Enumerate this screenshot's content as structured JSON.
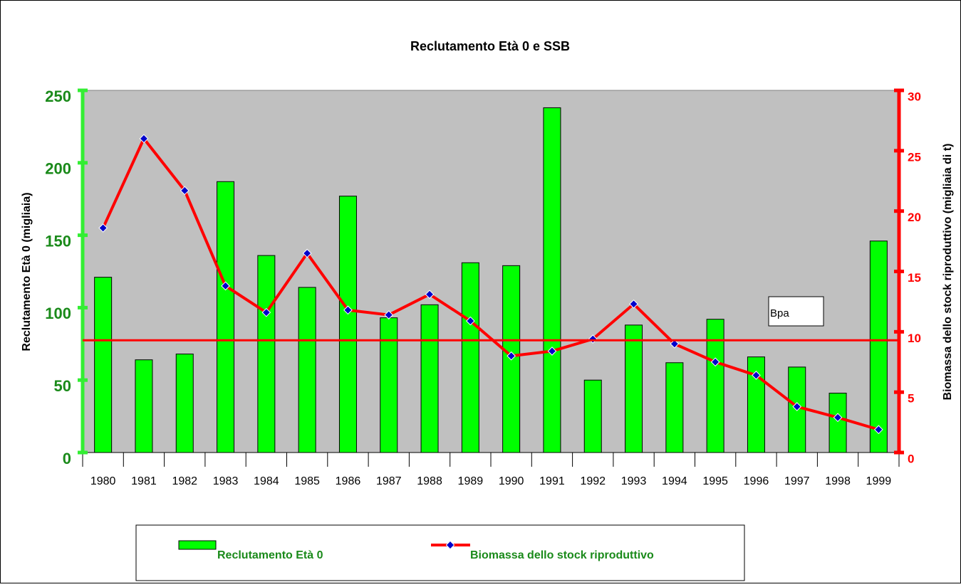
{
  "chart_data": {
    "type": "bar_line",
    "title": "Reclutamento Età 0 e SSB",
    "y_label": "Reclutamento Età 0 (migliaia)",
    "y2_label": "Biomassa dello stock riproduttivo (migliaia di t)",
    "categories": [
      "1980",
      "1981",
      "1982",
      "1983",
      "1984",
      "1985",
      "1986",
      "1987",
      "1988",
      "1989",
      "1990",
      "1991",
      "1992",
      "1993",
      "1994",
      "1995",
      "1996",
      "1997",
      "1998",
      "1999"
    ],
    "series": [
      {
        "name": "Reclutamento Età 0",
        "type": "bar",
        "color": "#00ff00",
        "axis": "y",
        "values": [
          121,
          64,
          68,
          187,
          136,
          114,
          177,
          93,
          102,
          131,
          129,
          238,
          50,
          88,
          62,
          92,
          66,
          59,
          41,
          146
        ]
      },
      {
        "name": "Biomassa dello stock riproduttivo",
        "type": "line",
        "color": "#ff0000",
        "marker_color": "#0000cc",
        "axis": "y2",
        "values": [
          18.6,
          26.0,
          21.7,
          13.8,
          11.6,
          16.5,
          11.8,
          11.4,
          13.1,
          10.9,
          8.0,
          8.4,
          9.4,
          12.3,
          9.0,
          7.5,
          6.4,
          3.8,
          2.9,
          1.9
        ]
      }
    ],
    "reference_line": {
      "label": "Bpa",
      "value": 9.3,
      "axis": "y2",
      "color": "#ff0000"
    },
    "ylim": [
      0,
      250
    ],
    "yticks": [
      0,
      50,
      100,
      150,
      200,
      250
    ],
    "y2lim": [
      0,
      30
    ],
    "y2ticks": [
      0,
      5,
      10,
      15,
      20,
      25,
      30
    ],
    "legend": "bottom"
  }
}
